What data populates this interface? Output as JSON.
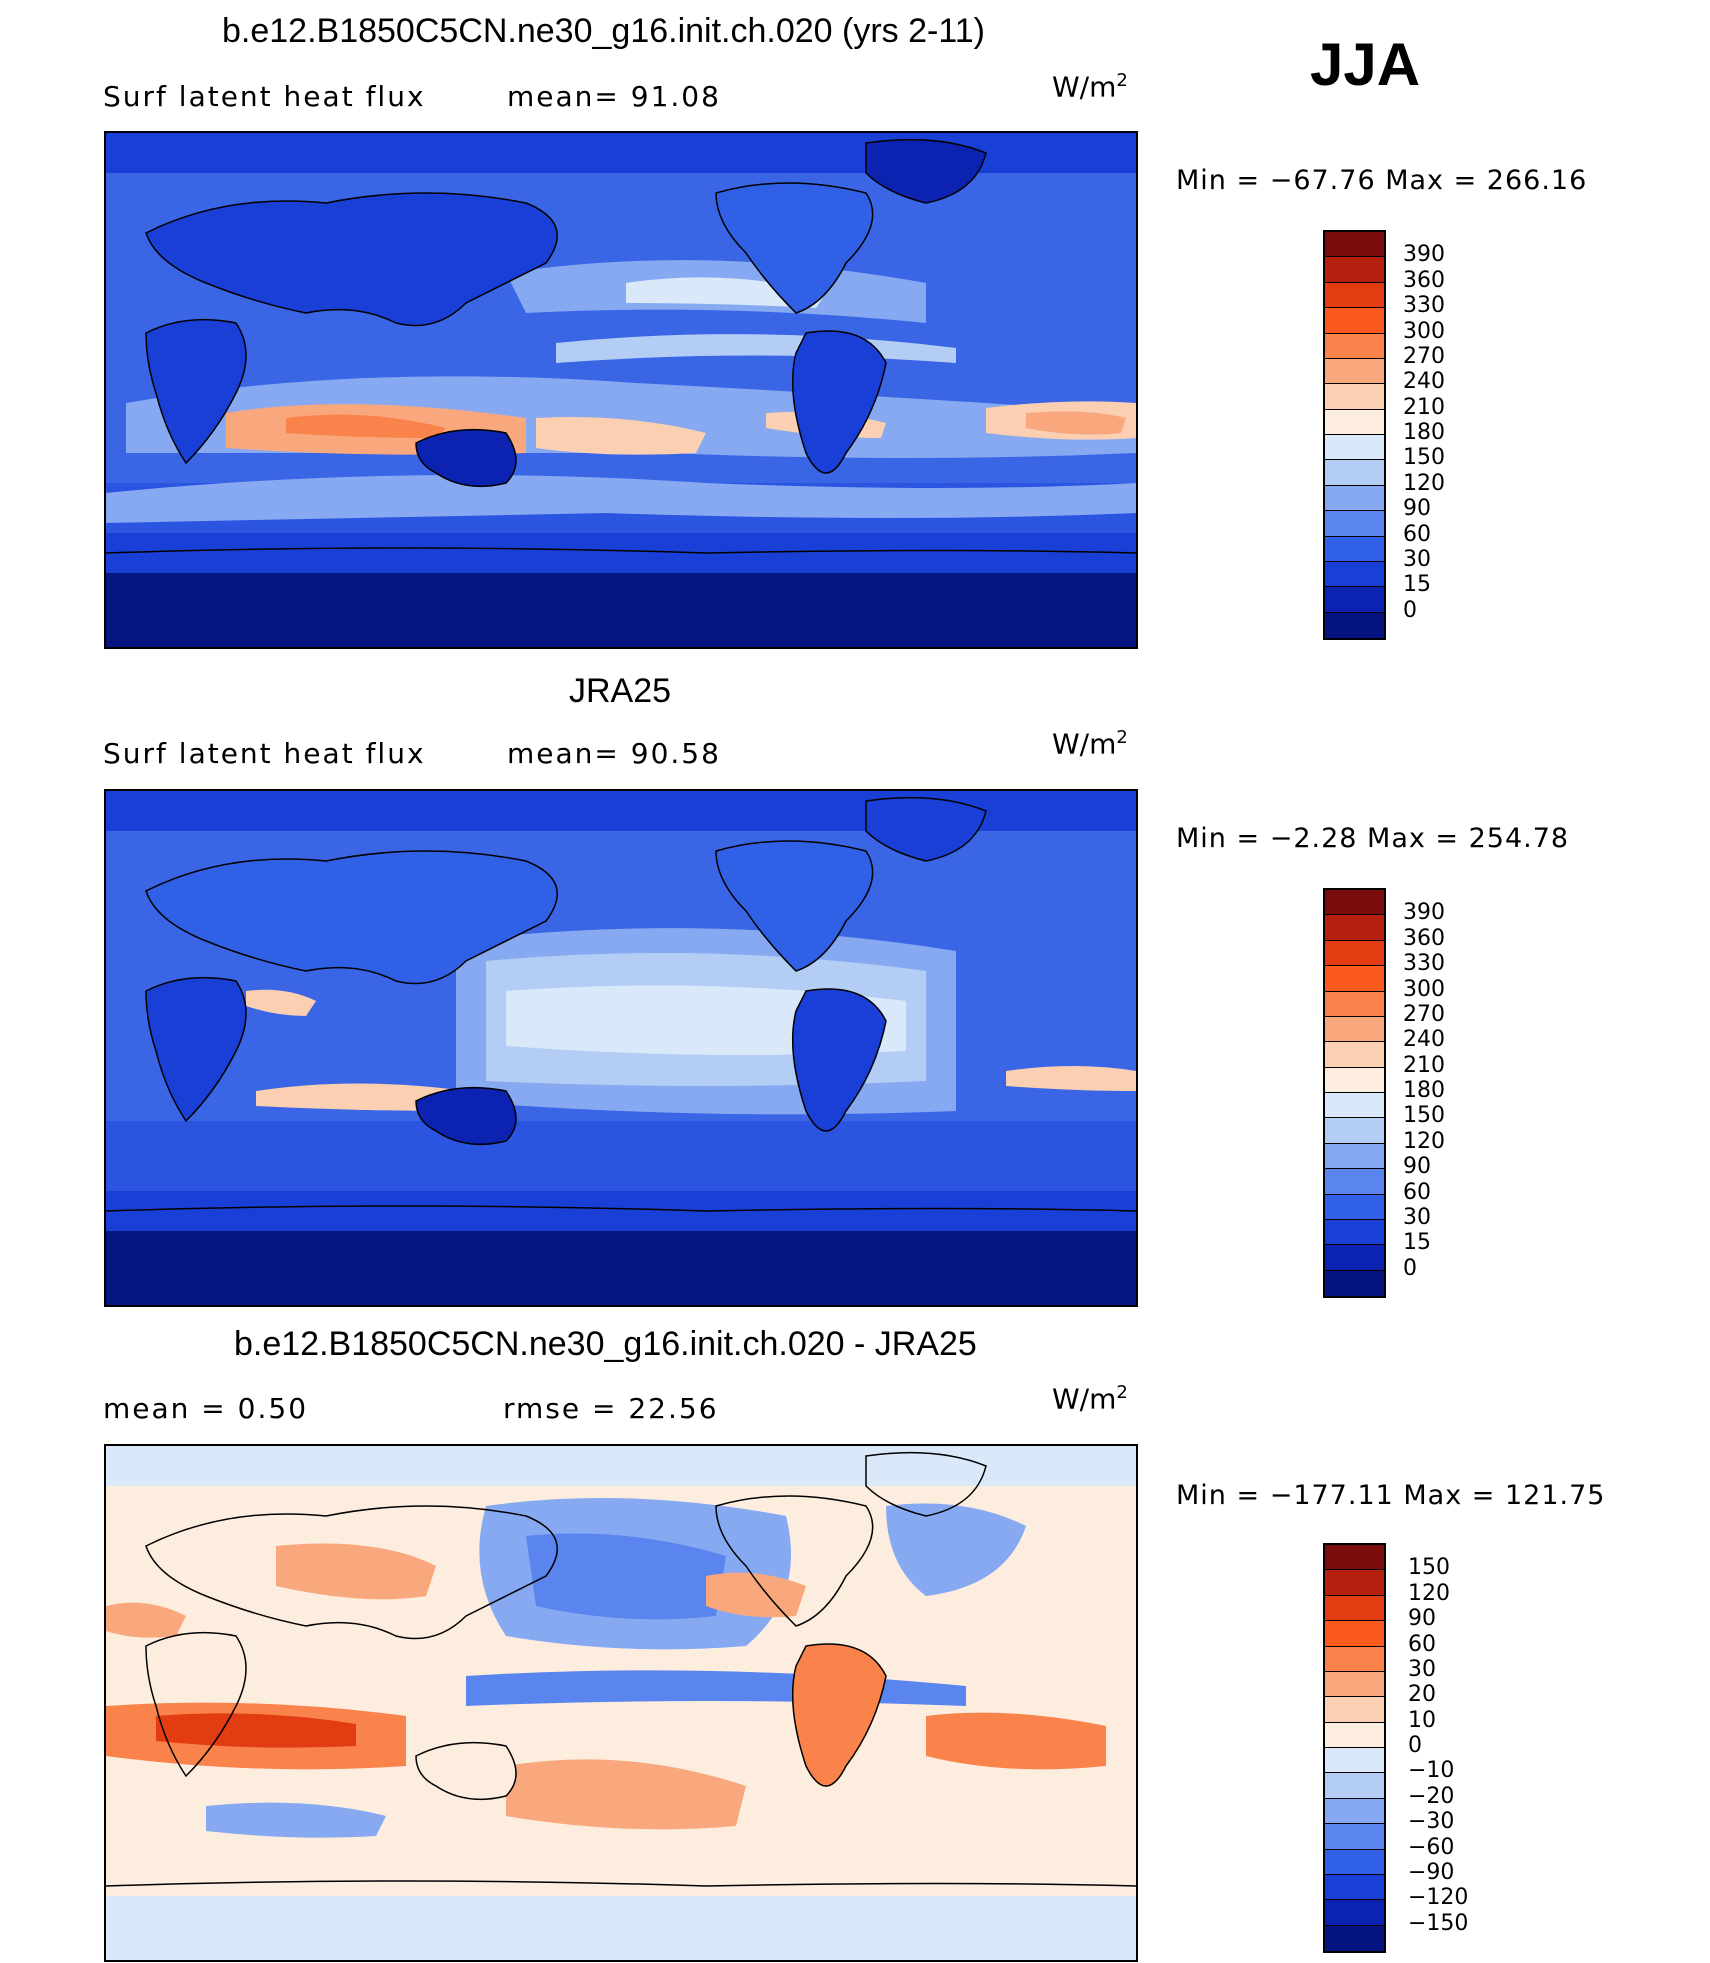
{
  "season": "JJA",
  "panels": [
    {
      "id": "model",
      "title": "b.e12.B1850C5CN.ne30_g16.init.ch.020 (yrs 2-11)",
      "left_label": "Surf  latent  heat  flux",
      "stat_label": "mean=   91.08",
      "units": "W/m",
      "units_sup": "2",
      "minmax": "Min  =  −67.76  Max  =  266.16",
      "colorbar_levels": [
        "390",
        "360",
        "330",
        "300",
        "270",
        "240",
        "210",
        "180",
        "150",
        "120",
        "90",
        "60",
        "30",
        "15",
        "0"
      ],
      "colorbar_colors": [
        "#7a0c0c",
        "#b5200e",
        "#e23c12",
        "#fa5a1e",
        "#f9834a",
        "#f9a77d",
        "#fbcfb2",
        "#fceddf",
        "#d9e9f9",
        "#b3cdf5",
        "#87a9f2",
        "#5a84ee",
        "#3060e6",
        "#1a3fd6",
        "#0c22b0",
        "#051480"
      ]
    },
    {
      "id": "obs",
      "title": "JRA25",
      "left_label": "Surf  latent  heat  flux",
      "stat_label": "mean=   90.58",
      "units": "W/m",
      "units_sup": "2",
      "minmax": "Min  =   −2.28  Max  =  254.78",
      "colorbar_levels": [
        "390",
        "360",
        "330",
        "300",
        "270",
        "240",
        "210",
        "180",
        "150",
        "120",
        "90",
        "60",
        "30",
        "15",
        "0"
      ],
      "colorbar_colors": [
        "#7a0c0c",
        "#b5200e",
        "#e23c12",
        "#fa5a1e",
        "#f9834a",
        "#f9a77d",
        "#fbcfb2",
        "#fceddf",
        "#d9e9f9",
        "#b3cdf5",
        "#87a9f2",
        "#5a84ee",
        "#3060e6",
        "#1a3fd6",
        "#0c22b0",
        "#051480"
      ]
    },
    {
      "id": "diff",
      "title": "b.e12.B1850C5CN.ne30_g16.init.ch.020 - JRA25",
      "left_label": "mean  =      0.50",
      "stat_label": "rmse  =    22.56",
      "units": "W/m",
      "units_sup": "2",
      "minmax": "Min  =  −177.11  Max  =  121.75",
      "colorbar_levels": [
        "150",
        "120",
        "90",
        "60",
        "30",
        "20",
        "10",
        "0",
        "−10",
        "−20",
        "−30",
        "−60",
        "−90",
        "−120",
        "−150"
      ],
      "colorbar_colors": [
        "#7a0c0c",
        "#b5200e",
        "#e23c12",
        "#fa5a1e",
        "#f9834a",
        "#f9a77d",
        "#fbcfb2",
        "#fceddf",
        "#d9e9f9",
        "#b3cdf5",
        "#87a9f2",
        "#5a84ee",
        "#3060e6",
        "#1a3fd6",
        "#0c22b0",
        "#051480"
      ]
    }
  ]
}
